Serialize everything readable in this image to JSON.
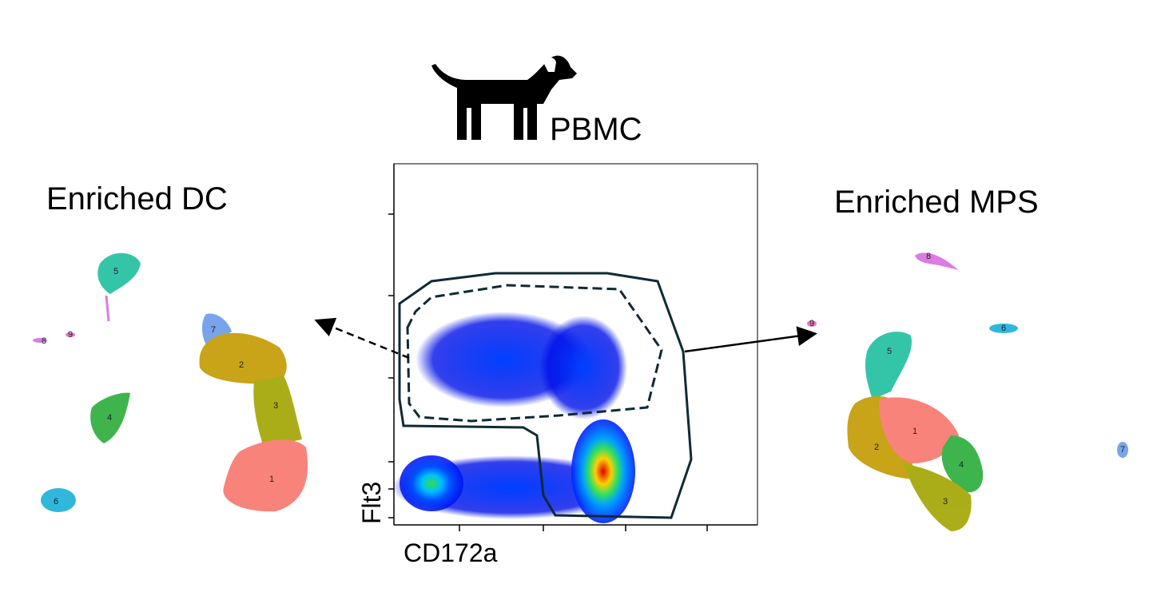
{
  "title": "PBMC",
  "left_panel": {
    "title": "Enriched DC",
    "clusters": [
      "1",
      "2",
      "3",
      "4",
      "5",
      "6",
      "7",
      "8",
      "9"
    ]
  },
  "center_plot": {
    "x_label": "CD172a",
    "y_label": "Flt3"
  },
  "right_panel": {
    "title": "Enriched MPS",
    "clusters": [
      "1",
      "2",
      "3",
      "4",
      "5",
      "6",
      "7",
      "8",
      "9"
    ]
  }
}
